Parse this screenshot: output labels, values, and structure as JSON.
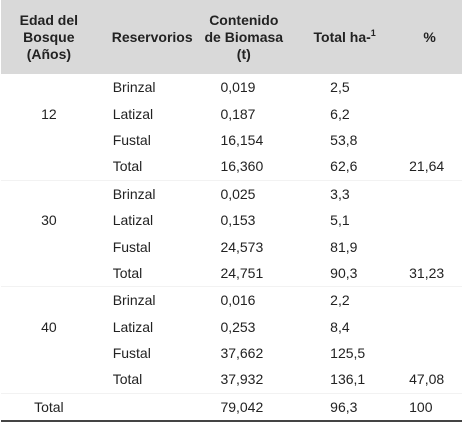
{
  "headers": {
    "edad": [
      "Edad del",
      "Bosque",
      "(Años)"
    ],
    "reservorios": "Reservorios",
    "biomasa": [
      "Contenido",
      "de Biomasa",
      "(t)"
    ],
    "total": "Total ha-",
    "total_sup": "1",
    "pct": "%"
  },
  "groups": [
    {
      "edad": "12",
      "rows": [
        {
          "res": "Brinzal",
          "bio": "0,019",
          "tot": "2,5",
          "pct": ""
        },
        {
          "res": "Latizal",
          "bio": "0,187",
          "tot": "6,2",
          "pct": ""
        },
        {
          "res": "Fustal",
          "bio": "16,154",
          "tot": "53,8",
          "pct": ""
        },
        {
          "res": "Total",
          "bio": "16,360",
          "tot": "62,6",
          "pct": "21,64"
        }
      ]
    },
    {
      "edad": "30",
      "rows": [
        {
          "res": "Brinzal",
          "bio": "0,025",
          "tot": "3,3",
          "pct": ""
        },
        {
          "res": "Latizal",
          "bio": "0,153",
          "tot": "5,1",
          "pct": ""
        },
        {
          "res": "Fustal",
          "bio": "24,573",
          "tot": "81,9",
          "pct": ""
        },
        {
          "res": "Total",
          "bio": "24,751",
          "tot": "90,3",
          "pct": "31,23"
        }
      ]
    },
    {
      "edad": "40",
      "rows": [
        {
          "res": "Brinzal",
          "bio": "0,016",
          "tot": "2,2",
          "pct": ""
        },
        {
          "res": "Latizal",
          "bio": "0,253",
          "tot": "8,4",
          "pct": ""
        },
        {
          "res": "Fustal",
          "bio": "37,662",
          "tot": "125,5",
          "pct": ""
        },
        {
          "res": "Total",
          "bio": "37,932",
          "tot": "136,1",
          "pct": "47,08"
        }
      ]
    }
  ],
  "grand_total": {
    "label": "Total",
    "res": "",
    "bio": "79,042",
    "tot": "96,3",
    "pct": "100"
  },
  "colors": {
    "header_bg": "#d9d9d9",
    "text": "#222222",
    "bottom_rule": "#444444"
  }
}
